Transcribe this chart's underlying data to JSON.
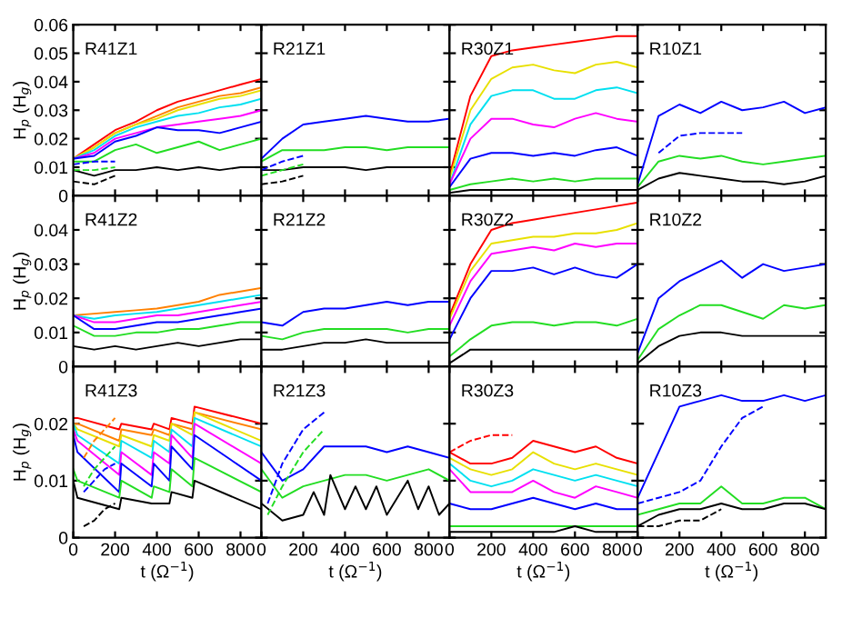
{
  "chart_data": [
    {
      "type": "line",
      "title": "R41Z1",
      "ylabel": "H$_{p}$ (H$_{g}$)",
      "tick_labels": "y",
      "xlim": [
        0,
        900
      ],
      "xticks": [
        0,
        200,
        400,
        600,
        800
      ],
      "ylim": [
        0,
        0.06
      ],
      "yticks": [
        0,
        0.01,
        0.02,
        0.03,
        0.04,
        0.05,
        0.06
      ],
      "x": [
        0,
        100,
        200,
        300,
        400,
        500,
        600,
        700,
        800,
        900
      ],
      "series": [
        {
          "color": "#ff0000",
          "values": [
            0.013,
            0.018,
            0.023,
            0.026,
            0.03,
            0.033,
            0.035,
            0.037,
            0.039,
            0.041
          ]
        },
        {
          "color": "#ff8000",
          "values": [
            0.013,
            0.017,
            0.022,
            0.025,
            0.028,
            0.031,
            0.033,
            0.035,
            0.036,
            0.038
          ]
        },
        {
          "color": "#e8e000",
          "values": [
            0.013,
            0.017,
            0.022,
            0.025,
            0.027,
            0.03,
            0.032,
            0.034,
            0.035,
            0.037
          ]
        },
        {
          "color": "#00e0f0",
          "values": [
            0.013,
            0.016,
            0.021,
            0.024,
            0.026,
            0.028,
            0.029,
            0.031,
            0.032,
            0.034
          ]
        },
        {
          "color": "#ff00ff",
          "values": [
            0.013,
            0.015,
            0.02,
            0.022,
            0.024,
            0.025,
            0.026,
            0.027,
            0.028,
            0.03
          ]
        },
        {
          "color": "#0000ff",
          "values": [
            0.013,
            0.014,
            0.019,
            0.021,
            0.024,
            0.023,
            0.023,
            0.022,
            0.024,
            0.026
          ]
        },
        {
          "color": "#22dd22",
          "values": [
            0.012,
            0.012,
            0.016,
            0.018,
            0.015,
            0.017,
            0.019,
            0.016,
            0.018,
            0.02
          ]
        },
        {
          "color": "#000000",
          "values": [
            0.009,
            0.007,
            0.009,
            0.009,
            0.01,
            0.009,
            0.01,
            0.009,
            0.01,
            0.01
          ]
        },
        {
          "color": "#0000ff",
          "line_style": "dashed",
          "x": [
            0,
            100,
            200
          ],
          "values": [
            0.011,
            0.012,
            0.012
          ]
        },
        {
          "color": "#22dd22",
          "line_style": "dashed",
          "x": [
            0,
            100,
            200
          ],
          "values": [
            0.009,
            0.009,
            0.01
          ]
        },
        {
          "color": "#000000",
          "line_style": "dashed",
          "x": [
            0,
            100,
            200
          ],
          "values": [
            0.005,
            0.004,
            0.007
          ]
        }
      ]
    },
    {
      "type": "line",
      "title": "R21Z1",
      "tick_labels": false,
      "xlim": [
        0,
        900
      ],
      "xticks": [
        0,
        200,
        400,
        600,
        800
      ],
      "ylim": [
        0,
        0.06
      ],
      "yticks": [
        0,
        0.01,
        0.02,
        0.03,
        0.04,
        0.05,
        0.06
      ],
      "x": [
        0,
        100,
        200,
        300,
        400,
        500,
        600,
        700,
        800,
        900
      ],
      "series": [
        {
          "color": "#0000ff",
          "values": [
            0.013,
            0.02,
            0.025,
            0.026,
            0.027,
            0.028,
            0.027,
            0.026,
            0.026,
            0.027
          ]
        },
        {
          "color": "#22dd22",
          "values": [
            0.012,
            0.016,
            0.016,
            0.016,
            0.017,
            0.017,
            0.016,
            0.017,
            0.017,
            0.017
          ]
        },
        {
          "color": "#000000",
          "values": [
            0.009,
            0.009,
            0.01,
            0.01,
            0.01,
            0.009,
            0.01,
            0.01,
            0.01,
            0.01
          ]
        },
        {
          "color": "#0000ff",
          "line_style": "dashed",
          "x": [
            0,
            100,
            200
          ],
          "values": [
            0.009,
            0.012,
            0.014
          ]
        },
        {
          "color": "#22dd22",
          "line_style": "dashed",
          "x": [
            0,
            100,
            200
          ],
          "values": [
            0.007,
            0.009,
            0.011
          ]
        },
        {
          "color": "#000000",
          "line_style": "dashed",
          "x": [
            0,
            100,
            200
          ],
          "values": [
            0.004,
            0.005,
            0.007
          ]
        }
      ]
    },
    {
      "type": "line",
      "title": "R30Z1",
      "tick_labels": false,
      "xlim": [
        0,
        900
      ],
      "xticks": [
        0,
        200,
        400,
        600,
        800
      ],
      "ylim": [
        0,
        0.06
      ],
      "yticks": [
        0,
        0.01,
        0.02,
        0.03,
        0.04,
        0.05,
        0.06
      ],
      "x": [
        0,
        100,
        200,
        300,
        400,
        500,
        600,
        700,
        800,
        900
      ],
      "series": [
        {
          "color": "#ff0000",
          "values": [
            0.007,
            0.035,
            0.049,
            0.051,
            0.052,
            0.053,
            0.054,
            0.055,
            0.056,
            0.056
          ]
        },
        {
          "color": "#e8e000",
          "values": [
            0.006,
            0.03,
            0.041,
            0.045,
            0.046,
            0.044,
            0.043,
            0.046,
            0.047,
            0.045
          ]
        },
        {
          "color": "#00e0f0",
          "values": [
            0.004,
            0.025,
            0.035,
            0.037,
            0.037,
            0.034,
            0.034,
            0.037,
            0.038,
            0.036
          ]
        },
        {
          "color": "#ff00ff",
          "values": [
            0.004,
            0.02,
            0.027,
            0.027,
            0.025,
            0.024,
            0.027,
            0.029,
            0.027,
            0.026
          ]
        },
        {
          "color": "#0000ff",
          "values": [
            0.003,
            0.013,
            0.015,
            0.015,
            0.014,
            0.015,
            0.014,
            0.016,
            0.017,
            0.014
          ]
        },
        {
          "color": "#22dd22",
          "values": [
            0.002,
            0.004,
            0.005,
            0.006,
            0.005,
            0.006,
            0.005,
            0.006,
            0.006,
            0.006
          ]
        },
        {
          "color": "#000000",
          "values": [
            0.001,
            0.002,
            0.002,
            0.002,
            0.002,
            0.002,
            0.002,
            0.002,
            0.002,
            0.002
          ]
        }
      ]
    },
    {
      "type": "line",
      "title": "R10Z1",
      "tick_labels": false,
      "xlim": [
        0,
        900
      ],
      "xticks": [
        0,
        200,
        400,
        600,
        800
      ],
      "ylim": [
        0,
        0.06
      ],
      "yticks": [
        0,
        0.01,
        0.02,
        0.03,
        0.04,
        0.05,
        0.06
      ],
      "x": [
        0,
        100,
        200,
        300,
        400,
        500,
        600,
        700,
        800,
        900
      ],
      "series": [
        {
          "color": "#0000ff",
          "values": [
            0.004,
            0.028,
            0.032,
            0.029,
            0.033,
            0.03,
            0.031,
            0.033,
            0.029,
            0.031
          ]
        },
        {
          "color": "#22dd22",
          "values": [
            0.003,
            0.012,
            0.014,
            0.013,
            0.014,
            0.012,
            0.011,
            0.012,
            0.013,
            0.014
          ]
        },
        {
          "color": "#000000",
          "values": [
            0.002,
            0.006,
            0.008,
            0.007,
            0.006,
            0.005,
            0.005,
            0.004,
            0.005,
            0.007
          ]
        },
        {
          "color": "#0000ff",
          "line_style": "dashed",
          "x": [
            100,
            200,
            300,
            400,
            500
          ],
          "values": [
            0.015,
            0.021,
            0.022,
            0.022,
            0.022
          ]
        }
      ]
    },
    {
      "type": "line",
      "title": "R41Z2",
      "ylabel": "H$_{p}$ (H$_{g}$)",
      "tick_labels": "y",
      "xlim": [
        0,
        900
      ],
      "xticks": [
        0,
        200,
        400,
        600,
        800
      ],
      "ylim": [
        0,
        0.05
      ],
      "yticks": [
        0,
        0.01,
        0.02,
        0.03,
        0.04
      ],
      "x": [
        0,
        100,
        200,
        300,
        400,
        500,
        600,
        700,
        800,
        900
      ],
      "series": [
        {
          "color": "#ff8000",
          "values": [
            0.015,
            0.0155,
            0.016,
            0.0165,
            0.017,
            0.018,
            0.019,
            0.021,
            0.022,
            0.023
          ]
        },
        {
          "color": "#00e0f0",
          "values": [
            0.015,
            0.014,
            0.015,
            0.0155,
            0.016,
            0.017,
            0.018,
            0.019,
            0.02,
            0.021
          ]
        },
        {
          "color": "#ff00ff",
          "values": [
            0.015,
            0.013,
            0.013,
            0.014,
            0.015,
            0.015,
            0.016,
            0.017,
            0.018,
            0.019
          ]
        },
        {
          "color": "#0000ff",
          "values": [
            0.015,
            0.011,
            0.011,
            0.012,
            0.013,
            0.013,
            0.014,
            0.015,
            0.016,
            0.017
          ]
        },
        {
          "color": "#22dd22",
          "values": [
            0.012,
            0.009,
            0.009,
            0.01,
            0.01,
            0.011,
            0.011,
            0.012,
            0.013,
            0.013
          ]
        },
        {
          "color": "#000000",
          "values": [
            0.006,
            0.005,
            0.006,
            0.005,
            0.006,
            0.007,
            0.006,
            0.007,
            0.008,
            0.008
          ]
        }
      ]
    },
    {
      "type": "line",
      "title": "R21Z2",
      "tick_labels": false,
      "xlim": [
        0,
        900
      ],
      "xticks": [
        0,
        200,
        400,
        600,
        800
      ],
      "ylim": [
        0,
        0.05
      ],
      "yticks": [
        0,
        0.01,
        0.02,
        0.03,
        0.04
      ],
      "x": [
        0,
        100,
        200,
        300,
        400,
        500,
        600,
        700,
        800,
        900
      ],
      "series": [
        {
          "color": "#0000ff",
          "values": [
            0.013,
            0.012,
            0.016,
            0.017,
            0.017,
            0.018,
            0.019,
            0.018,
            0.019,
            0.019
          ]
        },
        {
          "color": "#22dd22",
          "values": [
            0.009,
            0.008,
            0.01,
            0.011,
            0.011,
            0.011,
            0.011,
            0.01,
            0.011,
            0.011
          ]
        },
        {
          "color": "#000000",
          "values": [
            0.005,
            0.005,
            0.006,
            0.007,
            0.007,
            0.008,
            0.007,
            0.007,
            0.007,
            0.007
          ]
        }
      ]
    },
    {
      "type": "line",
      "title": "R30Z2",
      "tick_labels": false,
      "xlim": [
        0,
        900
      ],
      "xticks": [
        0,
        200,
        400,
        600,
        800
      ],
      "ylim": [
        0,
        0.05
      ],
      "yticks": [
        0,
        0.01,
        0.02,
        0.03,
        0.04
      ],
      "x": [
        0,
        100,
        200,
        300,
        400,
        500,
        600,
        700,
        800,
        900
      ],
      "series": [
        {
          "color": "#ff0000",
          "values": [
            0.015,
            0.03,
            0.04,
            0.042,
            0.043,
            0.044,
            0.045,
            0.046,
            0.047,
            0.048
          ]
        },
        {
          "color": "#e8e000",
          "values": [
            0.014,
            0.028,
            0.036,
            0.037,
            0.038,
            0.038,
            0.039,
            0.039,
            0.04,
            0.042
          ]
        },
        {
          "color": "#ff00ff",
          "values": [
            0.012,
            0.025,
            0.033,
            0.034,
            0.035,
            0.034,
            0.036,
            0.035,
            0.036,
            0.036
          ]
        },
        {
          "color": "#0000ff",
          "values": [
            0.008,
            0.02,
            0.028,
            0.028,
            0.029,
            0.027,
            0.029,
            0.027,
            0.026,
            0.03
          ]
        },
        {
          "color": "#22dd22",
          "values": [
            0.003,
            0.008,
            0.012,
            0.013,
            0.013,
            0.012,
            0.013,
            0.013,
            0.012,
            0.014
          ]
        },
        {
          "color": "#000000",
          "values": [
            0.001,
            0.005,
            0.005,
            0.005,
            0.005,
            0.005,
            0.005,
            0.005,
            0.005,
            0.005
          ]
        }
      ]
    },
    {
      "type": "line",
      "title": "R10Z2",
      "tick_labels": false,
      "xlim": [
        0,
        900
      ],
      "xticks": [
        0,
        200,
        400,
        600,
        800
      ],
      "ylim": [
        0,
        0.05
      ],
      "yticks": [
        0,
        0.01,
        0.02,
        0.03,
        0.04
      ],
      "x": [
        0,
        100,
        200,
        300,
        400,
        500,
        600,
        700,
        800,
        900
      ],
      "series": [
        {
          "color": "#0000ff",
          "values": [
            0.004,
            0.02,
            0.025,
            0.028,
            0.031,
            0.026,
            0.03,
            0.028,
            0.029,
            0.03
          ]
        },
        {
          "color": "#22dd22",
          "values": [
            0.002,
            0.011,
            0.015,
            0.018,
            0.018,
            0.016,
            0.014,
            0.018,
            0.017,
            0.018
          ]
        },
        {
          "color": "#000000",
          "values": [
            0.001,
            0.006,
            0.009,
            0.01,
            0.01,
            0.009,
            0.009,
            0.009,
            0.009,
            0.009
          ]
        }
      ]
    },
    {
      "type": "line",
      "title": "R41Z3",
      "ylabel": "H$_{p}$ (H$_{g}$)",
      "xlabel": "t (Ω$^{−1}$)",
      "xlim": [
        0,
        900
      ],
      "xticks": [
        0,
        200,
        400,
        600,
        800
      ],
      "ylim": [
        0,
        0.03
      ],
      "yticks": [
        0,
        0.01,
        0.02
      ],
      "x": [
        0,
        20,
        220,
        230,
        375,
        385,
        460,
        470,
        570,
        580,
        900
      ],
      "series": [
        {
          "color": "#ff0000",
          "values": [
            0.021,
            0.021,
            0.019,
            0.02,
            0.019,
            0.02,
            0.019,
            0.021,
            0.02,
            0.023,
            0.02
          ]
        },
        {
          "color": "#ff8000",
          "values": [
            0.02,
            0.02,
            0.017,
            0.019,
            0.018,
            0.019,
            0.018,
            0.02,
            0.019,
            0.022,
            0.019
          ]
        },
        {
          "color": "#e8e000",
          "values": [
            0.02,
            0.019,
            0.016,
            0.018,
            0.016,
            0.018,
            0.017,
            0.02,
            0.018,
            0.022,
            0.017
          ]
        },
        {
          "color": "#00e0f0",
          "values": [
            0.02,
            0.018,
            0.013,
            0.017,
            0.014,
            0.017,
            0.015,
            0.019,
            0.016,
            0.021,
            0.016
          ]
        },
        {
          "color": "#ff00ff",
          "values": [
            0.019,
            0.017,
            0.011,
            0.015,
            0.011,
            0.015,
            0.013,
            0.018,
            0.014,
            0.02,
            0.013
          ]
        },
        {
          "color": "#0000ff",
          "values": [
            0.018,
            0.015,
            0.008,
            0.013,
            0.009,
            0.013,
            0.01,
            0.016,
            0.012,
            0.018,
            0.01
          ]
        },
        {
          "color": "#22dd22",
          "values": [
            0.012,
            0.01,
            0.007,
            0.01,
            0.007,
            0.009,
            0.008,
            0.012,
            0.009,
            0.014,
            0.008
          ]
        },
        {
          "color": "#000000",
          "values": [
            0.01,
            0.007,
            0.005,
            0.007,
            0.006,
            0.006,
            0.006,
            0.008,
            0.007,
            0.01,
            0.005
          ]
        },
        {
          "color": "#ff8000",
          "line_style": "dashed",
          "x": [
            50,
            100,
            150,
            200
          ],
          "values": [
            0.014,
            0.017,
            0.019,
            0.021
          ]
        },
        {
          "color": "#22dd22",
          "line_style": "dashed",
          "x": [
            50,
            100,
            150,
            200
          ],
          "values": [
            0.009,
            0.012,
            0.014,
            0.016
          ]
        },
        {
          "color": "#0000ff",
          "line_style": "dashed",
          "x": [
            50,
            100,
            150,
            200
          ],
          "values": [
            0.008,
            0.01,
            0.012,
            0.013
          ]
        },
        {
          "color": "#000000",
          "line_style": "dashed",
          "x": [
            50,
            100,
            150,
            200
          ],
          "values": [
            0.002,
            0.003,
            0.005,
            0.006
          ]
        }
      ]
    },
    {
      "type": "line",
      "title": "R21Z3",
      "xlabel": "t (Ω$^{−1}$)",
      "tick_labels": "x",
      "xlim": [
        0,
        900
      ],
      "xticks": [
        0,
        200,
        400,
        600,
        800
      ],
      "ylim": [
        0,
        0.03
      ],
      "yticks": [
        0,
        0.01,
        0.02
      ],
      "x": [
        0,
        100,
        200,
        300,
        400,
        500,
        600,
        700,
        800,
        900
      ],
      "series": [
        {
          "color": "#0000ff",
          "values": [
            0.015,
            0.01,
            0.012,
            0.016,
            0.016,
            0.016,
            0.015,
            0.016,
            0.015,
            0.014
          ]
        },
        {
          "color": "#22dd22",
          "values": [
            0.012,
            0.007,
            0.009,
            0.01,
            0.011,
            0.011,
            0.01,
            0.011,
            0.012,
            0.01
          ]
        },
        {
          "color": "#000000",
          "x": [
            0,
            100,
            200,
            250,
            300,
            330,
            400,
            450,
            500,
            550,
            600,
            700,
            750,
            800,
            850,
            900
          ],
          "values": [
            0.006,
            0.003,
            0.004,
            0.008,
            0.004,
            0.011,
            0.005,
            0.009,
            0.005,
            0.009,
            0.004,
            0.01,
            0.005,
            0.009,
            0.004,
            0.006
          ]
        },
        {
          "color": "#0000ff",
          "line_style": "dashed",
          "x": [
            30,
            100,
            200,
            300
          ],
          "values": [
            0.006,
            0.013,
            0.019,
            0.022
          ]
        },
        {
          "color": "#22dd22",
          "line_style": "dashed",
          "x": [
            30,
            100,
            200,
            300
          ],
          "values": [
            0.004,
            0.009,
            0.015,
            0.019
          ]
        }
      ]
    },
    {
      "type": "line",
      "title": "R30Z3",
      "xlabel": "t (Ω$^{−1}$)",
      "tick_labels": "x",
      "xlim": [
        0,
        900
      ],
      "xticks": [
        0,
        200,
        400,
        600,
        800
      ],
      "ylim": [
        0,
        0.03
      ],
      "yticks": [
        0,
        0.01,
        0.02
      ],
      "x": [
        0,
        100,
        200,
        300,
        400,
        500,
        600,
        700,
        800,
        900
      ],
      "series": [
        {
          "color": "#ff0000",
          "values": [
            0.015,
            0.013,
            0.013,
            0.014,
            0.017,
            0.016,
            0.015,
            0.016,
            0.014,
            0.013
          ]
        },
        {
          "color": "#e8e000",
          "values": [
            0.014,
            0.012,
            0.011,
            0.012,
            0.015,
            0.013,
            0.012,
            0.013,
            0.012,
            0.011
          ]
        },
        {
          "color": "#00e0f0",
          "values": [
            0.013,
            0.01,
            0.009,
            0.01,
            0.012,
            0.011,
            0.01,
            0.011,
            0.01,
            0.009
          ]
        },
        {
          "color": "#ff00ff",
          "values": [
            0.012,
            0.008,
            0.008,
            0.008,
            0.01,
            0.008,
            0.007,
            0.009,
            0.008,
            0.007
          ]
        },
        {
          "color": "#0000ff",
          "values": [
            0.006,
            0.005,
            0.005,
            0.006,
            0.007,
            0.006,
            0.005,
            0.006,
            0.005,
            0.005
          ]
        },
        {
          "color": "#22dd22",
          "values": [
            0.002,
            0.002,
            0.002,
            0.002,
            0.002,
            0.002,
            0.002,
            0.002,
            0.002,
            0.002
          ]
        },
        {
          "color": "#000000",
          "values": [
            0.001,
            0.001,
            0.001,
            0.001,
            0.001,
            0.001,
            0.002,
            0.001,
            0.001,
            0.001
          ]
        },
        {
          "color": "#ff0000",
          "line_style": "dashed",
          "x": [
            0,
            100,
            200,
            300
          ],
          "values": [
            0.015,
            0.017,
            0.018,
            0.018
          ]
        }
      ]
    },
    {
      "type": "line",
      "title": "R10Z3",
      "xlabel": "t (Ω$^{−1}$)",
      "tick_labels": "x",
      "xlim": [
        0,
        900
      ],
      "xticks": [
        0,
        200,
        400,
        600,
        800
      ],
      "ylim": [
        0,
        0.03
      ],
      "yticks": [
        0,
        0.01,
        0.02
      ],
      "x": [
        0,
        100,
        200,
        300,
        400,
        500,
        600,
        700,
        800,
        900
      ],
      "series": [
        {
          "color": "#0000ff",
          "values": [
            0.007,
            0.015,
            0.023,
            0.024,
            0.025,
            0.024,
            0.024,
            0.025,
            0.024,
            0.025
          ]
        },
        {
          "color": "#22dd22",
          "values": [
            0.004,
            0.005,
            0.006,
            0.006,
            0.009,
            0.006,
            0.006,
            0.007,
            0.007,
            0.005
          ]
        },
        {
          "color": "#000000",
          "values": [
            0.002,
            0.004,
            0.005,
            0.005,
            0.006,
            0.005,
            0.005,
            0.006,
            0.006,
            0.005
          ]
        },
        {
          "color": "#0000ff",
          "line_style": "dashed",
          "x": [
            0,
            100,
            200,
            300,
            400,
            500,
            600
          ],
          "values": [
            0.006,
            0.007,
            0.008,
            0.01,
            0.016,
            0.021,
            0.023
          ]
        },
        {
          "color": "#000000",
          "line_style": "dashed",
          "x": [
            0,
            100,
            200,
            300,
            400
          ],
          "values": [
            0.002,
            0.002,
            0.003,
            0.003,
            0.005
          ]
        }
      ]
    }
  ]
}
